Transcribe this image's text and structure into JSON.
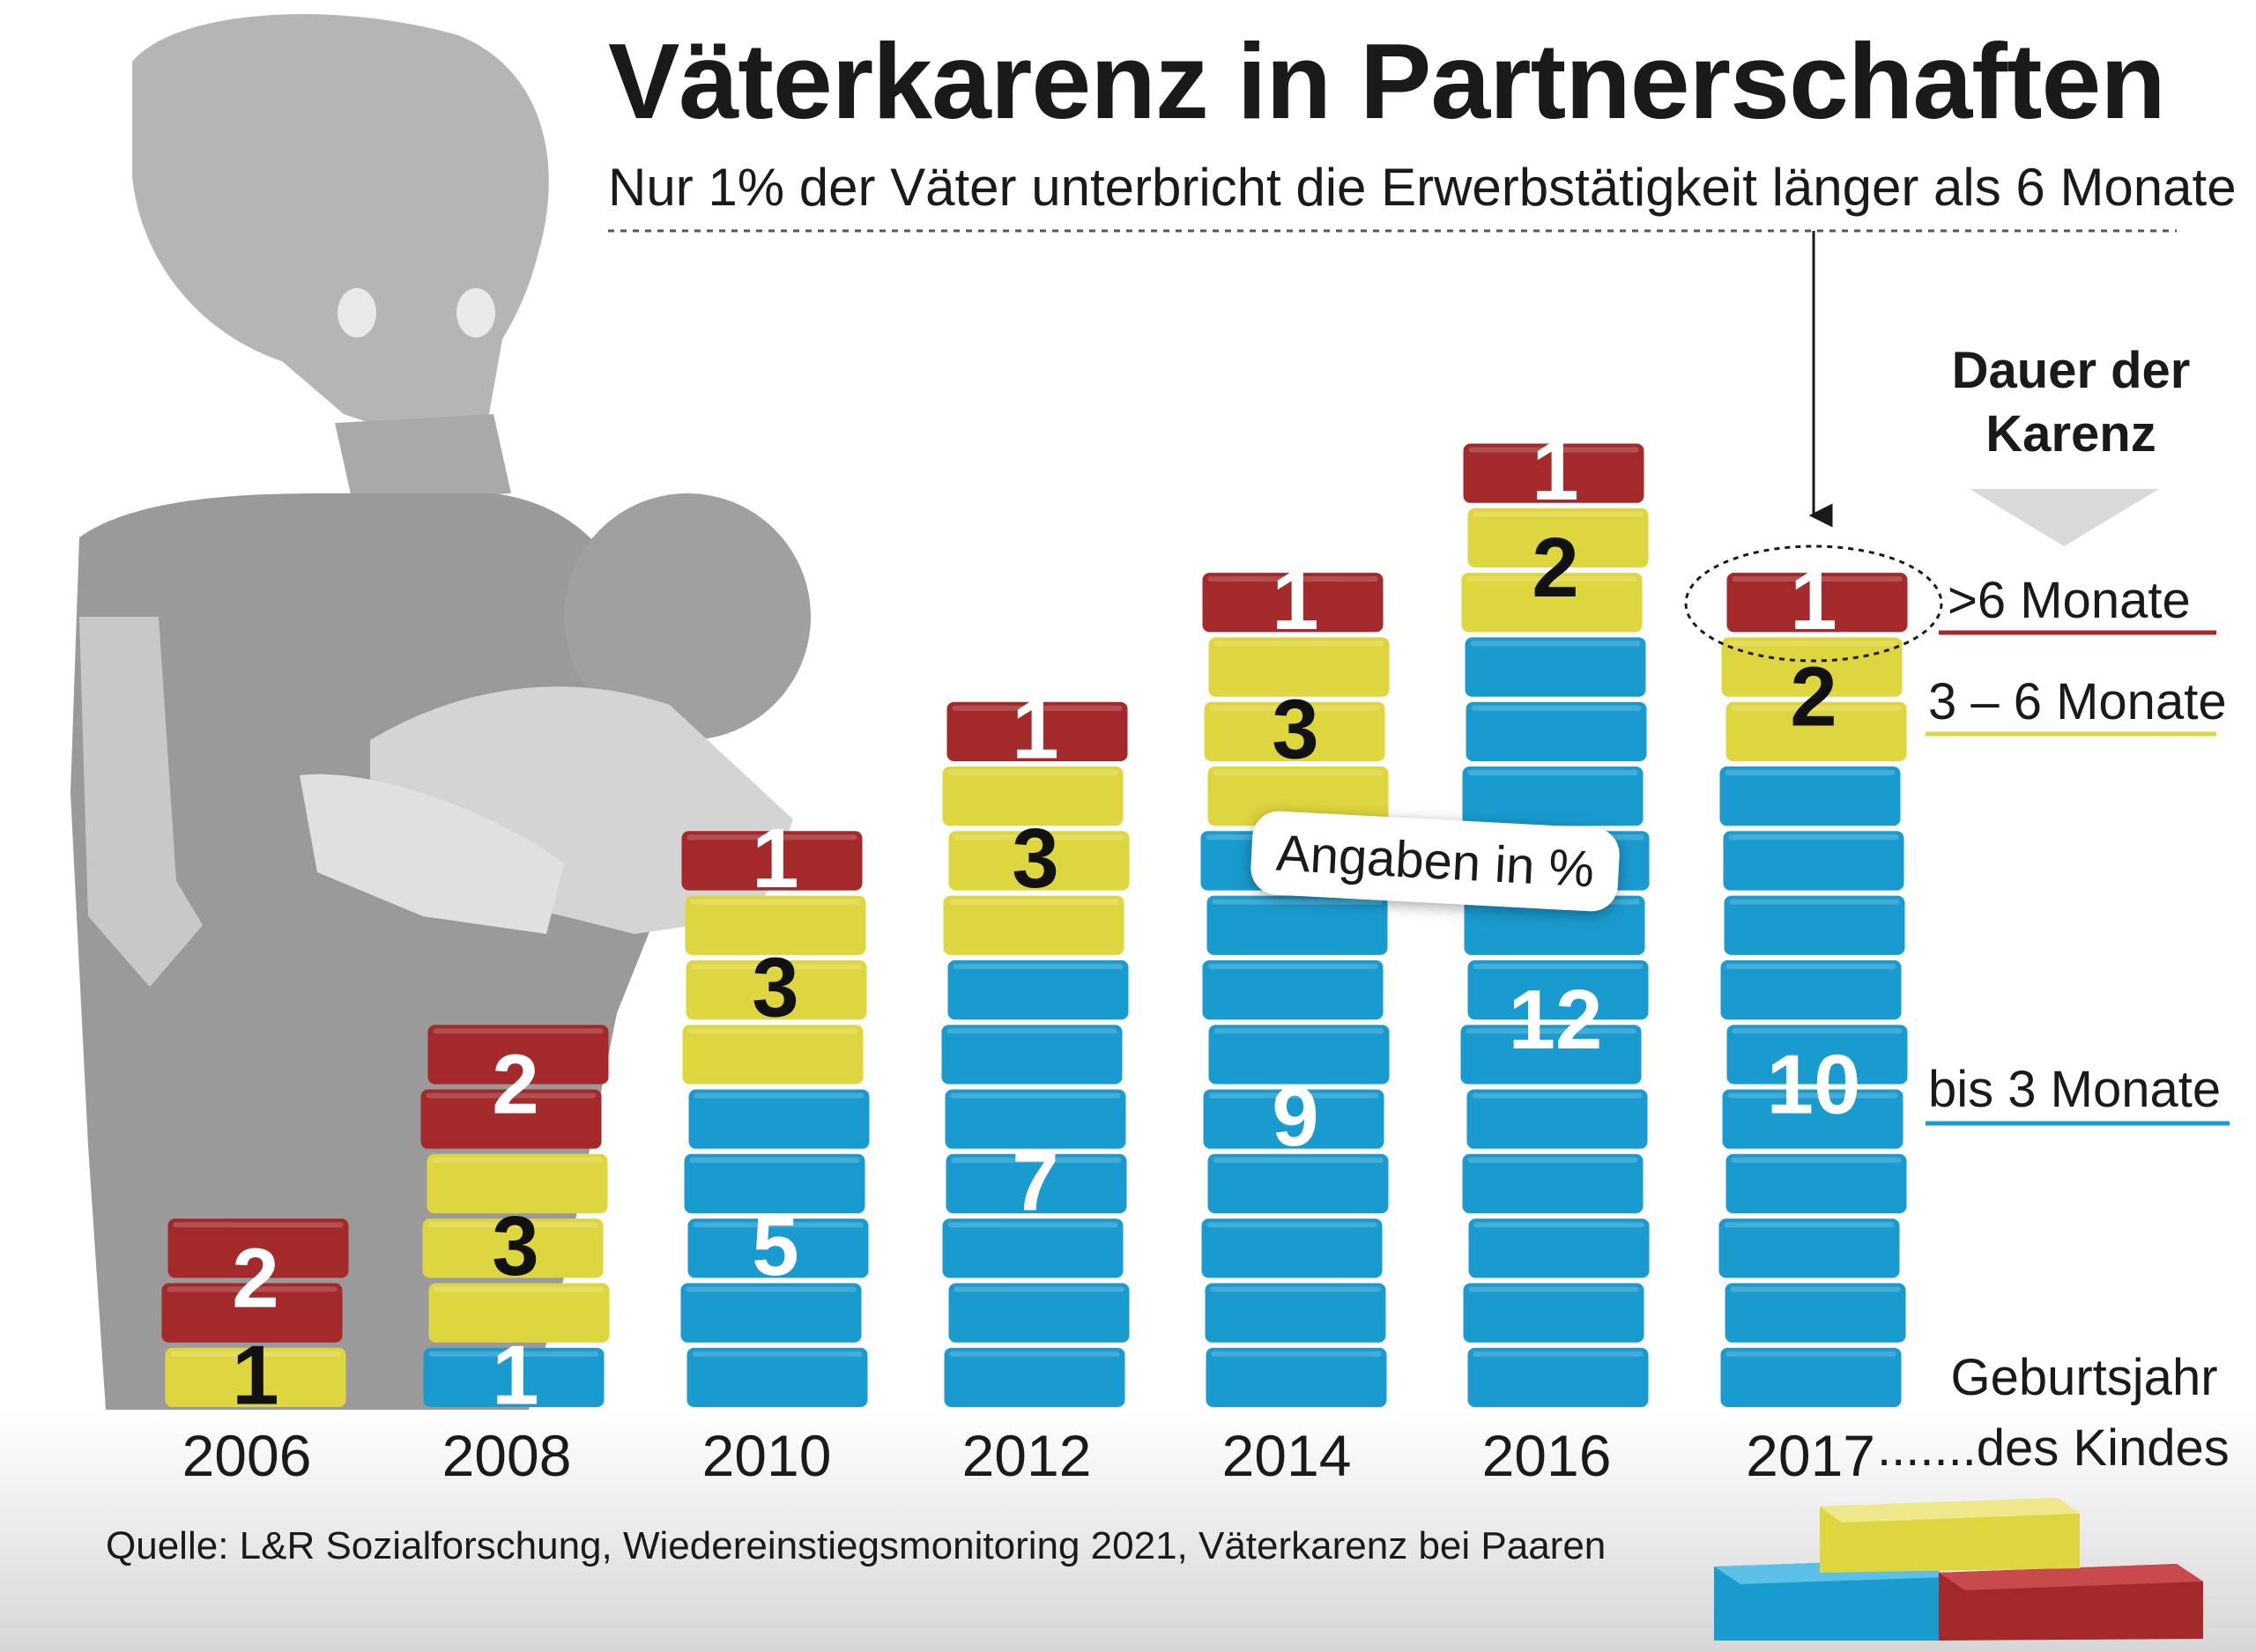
{
  "header": {
    "title": "Väterkarenz in Partnerschaften",
    "subtitle": "Nur 1% der Väter unterbricht die Erwerbstätigkeit länger als 6 Monate"
  },
  "legend": {
    "heading_line1": "Dauer der",
    "heading_line2": "Karenz",
    "over6": ">6 Monate",
    "mid": "3 – 6 Monate",
    "short": "bis 3 Monate"
  },
  "annotation": "Angaben in %",
  "xaxis_note": {
    "line1": "Geburtsjahr",
    "line2": ".......des Kindes"
  },
  "source": "Quelle: L&R Sozialforschung, Wiedereinstiegsmonitoring 2021, Väterkarenz bei Paaren",
  "colors": {
    "blue": "#1a9bd0",
    "yellow": "#ded63e",
    "red": "#a3292b",
    "text": "#1a1a1a",
    "illustration": "#b3b3b3"
  },
  "chart_data": {
    "type": "bar",
    "stacked": true,
    "title": "Väterkarenz in Partnerschaften",
    "xlabel": "Geburtsjahr des Kindes",
    "ylabel": "Angaben in %",
    "categories": [
      "2006",
      "2008",
      "2010",
      "2012",
      "2014",
      "2016",
      "2017"
    ],
    "series": [
      {
        "name": "bis 3 Monate",
        "values": [
          0,
          1,
          5,
          7,
          9,
          12,
          10
        ]
      },
      {
        "name": "3 – 6 Monate",
        "values": [
          1,
          3,
          3,
          3,
          3,
          2,
          2
        ]
      },
      {
        "name": ">6 Monate",
        "values": [
          2,
          2,
          1,
          1,
          1,
          1,
          1
        ]
      }
    ],
    "highlight": {
      "category": "2017",
      "series": ">6 Monate"
    }
  }
}
